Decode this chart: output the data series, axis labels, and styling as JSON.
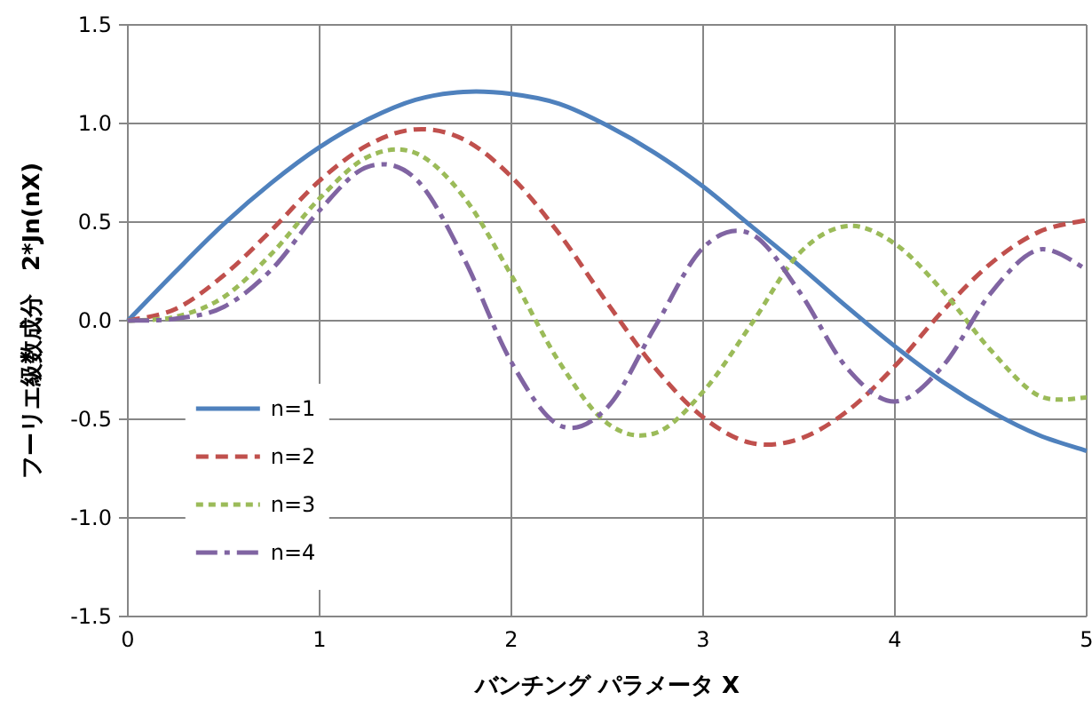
{
  "chart_data": {
    "type": "line",
    "xlabel": "バンチング パラメータ X",
    "ylabel": "フーリエ級数成分　2*Jn(nX)",
    "x": [
      0,
      0.25,
      0.5,
      0.75,
      1,
      1.25,
      1.5,
      1.75,
      2,
      2.25,
      2.5,
      2.75,
      3,
      3.25,
      3.5,
      3.75,
      4,
      4.25,
      4.5,
      4.75,
      5
    ],
    "series": [
      {
        "name": "n=1",
        "color": "#4f81bd",
        "line_style": "solid",
        "values": [
          0,
          0.25,
          0.49,
          0.7,
          0.88,
          1.02,
          1.12,
          1.16,
          1.15,
          1.1,
          0.99,
          0.85,
          0.68,
          0.48,
          0.28,
          0.07,
          -0.13,
          -0.31,
          -0.46,
          -0.58,
          -0.66
        ]
      },
      {
        "name": "n=2",
        "color": "#c0504d",
        "line_style": "dashed",
        "values": [
          0,
          0.06,
          0.23,
          0.46,
          0.71,
          0.89,
          0.97,
          0.92,
          0.73,
          0.44,
          0.09,
          -0.24,
          -0.49,
          -0.62,
          -0.6,
          -0.46,
          -0.23,
          0.05,
          0.29,
          0.45,
          0.51
        ]
      },
      {
        "name": "n=3",
        "color": "#9bbb59",
        "line_style": "dotted",
        "values": [
          0,
          0.02,
          0.12,
          0.34,
          0.62,
          0.83,
          0.85,
          0.63,
          0.23,
          -0.21,
          -0.52,
          -0.57,
          -0.36,
          -0.02,
          0.34,
          0.48,
          0.39,
          0.15,
          -0.15,
          -0.38,
          -0.39
        ]
      },
      {
        "name": "n=4",
        "color": "#8064a2",
        "line_style": "dashdot",
        "values": [
          0,
          0.01,
          0.07,
          0.26,
          0.56,
          0.78,
          0.72,
          0.32,
          -0.21,
          -0.53,
          -0.44,
          -0.03,
          0.37,
          0.44,
          0.15,
          -0.24,
          -0.41,
          -0.23,
          0.14,
          0.36,
          0.26
        ]
      }
    ],
    "xlim": [
      0,
      5
    ],
    "xticks": [
      0,
      1,
      2,
      3,
      4,
      5
    ],
    "ylim": [
      -1.5,
      1.5
    ],
    "yticks": [
      -1.5,
      {
        "value": -1,
        "label": "-1.0"
      },
      -0.5,
      {
        "value": 0,
        "label": "0.0"
      },
      0.5,
      {
        "value": 1,
        "label": "1.0"
      },
      1.5
    ],
    "grid": true,
    "legend": "left",
    "marker": "none"
  }
}
